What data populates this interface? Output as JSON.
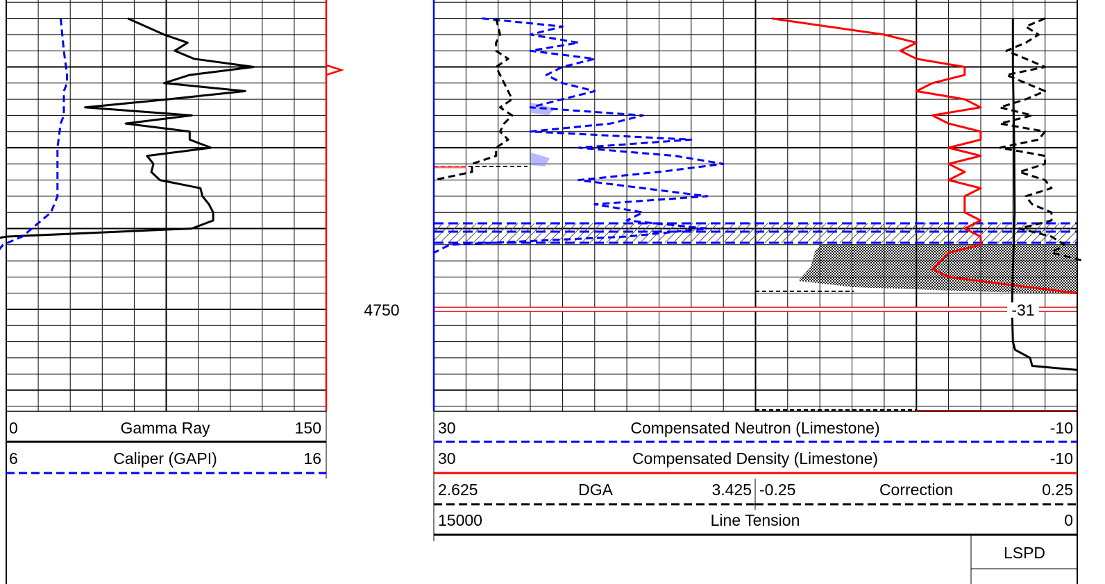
{
  "depth_label": "4750",
  "shift_label": "-31",
  "headers": {
    "gamma_ray": {
      "left": "0",
      "name": "Gamma Ray",
      "right": "150",
      "color": "#000000",
      "style": "solid"
    },
    "caliper": {
      "left": "6",
      "name": "Caliper (GAPI)",
      "right": "16",
      "color": "#0000ff",
      "style": "dashed"
    },
    "neutron": {
      "left": "30",
      "name": "Compensated Neutron (Limestone)",
      "right": "-10",
      "color": "#0000ff",
      "style": "dashed"
    },
    "density": {
      "left": "30",
      "name": "Compensated Density (Limestone)",
      "right": "-10",
      "color": "#ff0000",
      "style": "solid"
    },
    "dga": {
      "left": "2.625",
      "name": "DGA",
      "right": "3.425",
      "color": "#000000",
      "style": "dashed"
    },
    "correction": {
      "left": "-0.25",
      "name": "Correction",
      "right": "0.25",
      "color": "#000000",
      "style": "dashed"
    },
    "line_tension": {
      "left": "15000",
      "name": "Line Tension",
      "right": "0",
      "color": "#000000",
      "style": "solid"
    },
    "lspd": {
      "name": "LSPD"
    }
  },
  "chart_data": {
    "type": "line",
    "title": "",
    "depth_axis": {
      "marked_depth": 4750
    },
    "tracks": [
      {
        "name": "track-1",
        "series": [
          {
            "name": "Gamma Ray",
            "unit_range": [
              0,
              150
            ],
            "color": "#000000",
            "dash": "solid",
            "points": [
              [
                4714,
                57
              ],
              [
                4716,
                74
              ],
              [
                4717,
                85
              ],
              [
                4718,
                79
              ],
              [
                4719,
                88
              ],
              [
                4720,
                116
              ],
              [
                4721,
                86
              ],
              [
                4722,
                74
              ],
              [
                4723,
                112
              ],
              [
                4724,
                76
              ],
              [
                4725,
                37
              ],
              [
                4726,
                87
              ],
              [
                4727,
                56
              ],
              [
                4728,
                86
              ],
              [
                4729,
                86
              ],
              [
                4730,
                96
              ],
              [
                4731,
                66
              ],
              [
                4732,
                69
              ],
              [
                4733,
                68
              ],
              [
                4734,
                72
              ],
              [
                4735,
                91
              ],
              [
                4736,
                92
              ],
              [
                4737,
                95
              ],
              [
                4738,
                97
              ],
              [
                4739,
                97
              ],
              [
                4740,
                87
              ],
              [
                4741,
                0
              ],
              [
                4741.5,
                -10
              ]
            ]
          },
          {
            "name": "Caliper (GAPI)",
            "unit_range": [
              6,
              16
            ],
            "color": "#0000ff",
            "dash": "dashed",
            "points": [
              [
                4714,
                7.7
              ],
              [
                4718,
                7.8
              ],
              [
                4721,
                7.9
              ],
              [
                4722,
                7.9
              ],
              [
                4723,
                7.8
              ],
              [
                4726,
                7.8
              ],
              [
                4727,
                7.7
              ],
              [
                4730,
                7.6
              ],
              [
                4733,
                7.6
              ],
              [
                4736,
                7.6
              ],
              [
                4738,
                7.4
              ],
              [
                4740,
                6.8
              ],
              [
                4741,
                6.5
              ],
              [
                4742,
                5.9
              ],
              [
                4743,
                5.7
              ]
            ]
          }
        ]
      },
      {
        "name": "track-2",
        "series": [
          {
            "name": "Compensated Neutron (Limestone)",
            "unit_range": [
              30,
              -10
            ],
            "color": "#0000ff",
            "dash": "dashed",
            "points": [
              [
                4714,
                27
              ],
              [
                4715,
                22
              ],
              [
                4716,
                24
              ],
              [
                4717,
                21
              ],
              [
                4718,
                24
              ],
              [
                4719,
                20
              ],
              [
                4720,
                22
              ],
              [
                4721,
                23
              ],
              [
                4722,
                22
              ],
              [
                4723,
                20
              ],
              [
                4725,
                24
              ],
              [
                4726,
                17
              ],
              [
                4727,
                19
              ],
              [
                4728,
                24
              ],
              [
                4729,
                14
              ],
              [
                4730,
                21
              ],
              [
                4731,
                15
              ],
              [
                4732,
                12
              ],
              [
                4733,
                16
              ],
              [
                4734,
                21
              ],
              [
                4735,
                17
              ],
              [
                4736,
                13
              ],
              [
                4737,
                20
              ],
              [
                4738,
                17
              ],
              [
                4739,
                18
              ],
              [
                4740,
                13
              ],
              [
                4741,
                18
              ],
              [
                4742,
                29
              ],
              [
                4743,
                30
              ]
            ]
          },
          {
            "name": "Compensated Density (Limestone)",
            "unit_range": [
              30,
              -10
            ],
            "color": "#ff0000",
            "dash": "solid",
            "points": [
              [
                4714,
                9
              ],
              [
                4716,
                2
              ],
              [
                4717,
                0
              ],
              [
                4718,
                1
              ],
              [
                4719,
                0
              ],
              [
                4720,
                -3
              ],
              [
                4721,
                -3
              ],
              [
                4722,
                -1
              ],
              [
                4723,
                0
              ],
              [
                4724,
                -3
              ],
              [
                4725,
                -4
              ],
              [
                4726,
                -1
              ],
              [
                4727,
                -2
              ],
              [
                4728,
                -4
              ],
              [
                4729,
                -4
              ],
              [
                4730,
                -2
              ],
              [
                4731,
                -4
              ],
              [
                4732,
                -2
              ],
              [
                4733,
                -3
              ],
              [
                4734,
                -2
              ],
              [
                4735,
                -4
              ],
              [
                4736,
                -3
              ],
              [
                4737,
                -3
              ],
              [
                4738,
                -3
              ],
              [
                4739,
                -4
              ],
              [
                4740,
                -3
              ],
              [
                4741,
                -4
              ],
              [
                4742,
                -4
              ],
              [
                4743,
                -2
              ],
              [
                4745,
                -1
              ],
              [
                4746,
                -2
              ],
              [
                4747,
                -6
              ],
              [
                4748,
                -10
              ]
            ]
          },
          {
            "name": "DGA",
            "unit_range": [
              2.625,
              3.425
            ],
            "color": "#000000",
            "dash": "dashed",
            "points": [
              [
                4714,
                2.78
              ],
              [
                4716,
                2.79
              ],
              [
                4717,
                2.78
              ],
              [
                4718,
                2.78
              ],
              [
                4719,
                2.81
              ],
              [
                4720,
                2.78
              ],
              [
                4721,
                2.79
              ],
              [
                4722,
                2.8
              ],
              [
                4723,
                2.81
              ],
              [
                4724,
                2.82
              ],
              [
                4725,
                2.79
              ],
              [
                4726,
                2.82
              ],
              [
                4727,
                2.8
              ],
              [
                4728,
                2.79
              ],
              [
                4729,
                2.81
              ],
              [
                4730,
                2.78
              ],
              [
                4731,
                2.78
              ],
              [
                4732,
                2.72
              ],
              [
                4733,
                2.72
              ],
              [
                4734,
                2.625
              ]
            ]
          },
          {
            "name": "Correction",
            "unit_range": [
              -0.25,
              0.25
            ],
            "color": "#000000",
            "dash": "dashed",
            "points": [
              [
                4714,
                0.2
              ],
              [
                4715,
                0.17
              ],
              [
                4716,
                0.19
              ],
              [
                4717,
                0.17
              ],
              [
                4718,
                0.14
              ],
              [
                4719,
                0.17
              ],
              [
                4720,
                0.2
              ],
              [
                4721,
                0.14
              ],
              [
                4722,
                0.17
              ],
              [
                4723,
                0.2
              ],
              [
                4724,
                0.17
              ],
              [
                4725,
                0.13
              ],
              [
                4726,
                0.18
              ],
              [
                4727,
                0.13
              ],
              [
                4728,
                0.2
              ],
              [
                4729,
                0.19
              ],
              [
                4730,
                0.13
              ],
              [
                4731,
                0.2
              ],
              [
                4732,
                0.2
              ],
              [
                4733,
                0.16
              ],
              [
                4734,
                0.2
              ],
              [
                4735,
                0.21
              ],
              [
                4736,
                0.17
              ],
              [
                4737,
                0.18
              ],
              [
                4738,
                0.21
              ],
              [
                4739,
                0.21
              ],
              [
                4740,
                0.16
              ],
              [
                4741,
                0.21
              ],
              [
                4742,
                0.23
              ],
              [
                4743,
                0.21
              ],
              [
                4744,
                0.26
              ]
            ]
          },
          {
            "name": "Line Tension",
            "unit_range": [
              15000,
              0
            ],
            "color": "#000000",
            "dash": "solid",
            "points": [
              [
                4714,
                1500
              ],
              [
                4720,
                1500
              ],
              [
                4730,
                1470
              ],
              [
                4738,
                1460
              ],
              [
                4742,
                1480
              ],
              [
                4745,
                1500
              ],
              [
                4750,
                1520
              ],
              [
                4754,
                1500
              ],
              [
                4755,
                1450
              ],
              [
                4756,
                1100
              ],
              [
                4757,
                1050
              ],
              [
                4757.5,
                0
              ]
            ]
          }
        ]
      }
    ]
  }
}
